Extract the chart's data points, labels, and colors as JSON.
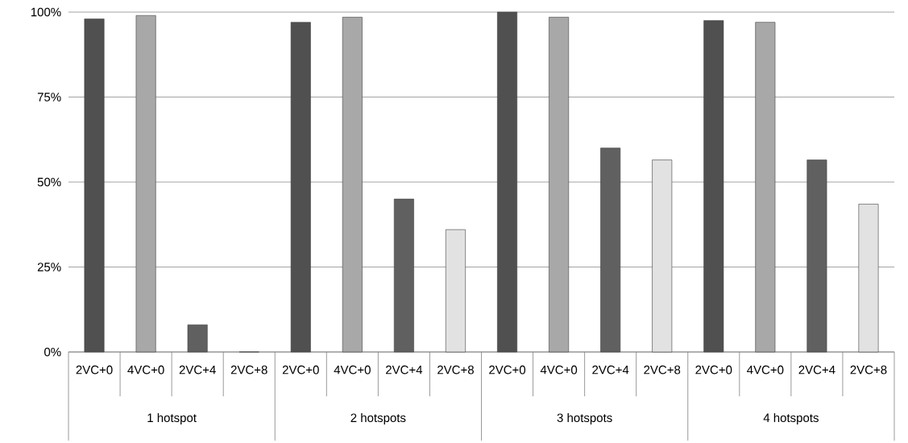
{
  "chart_data": {
    "type": "bar",
    "categories": [
      "2VC+0",
      "4VC+0",
      "2VC+4",
      "2VC+8",
      "2VC+0",
      "4VC+0",
      "2VC+4",
      "2VC+8",
      "2VC+0",
      "4VC+0",
      "2VC+4",
      "2VC+8",
      "2VC+0",
      "4VC+0",
      "2VC+4",
      "2VC+8"
    ],
    "values": [
      98,
      99,
      8,
      0,
      97,
      98.5,
      45,
      36,
      100,
      98.5,
      60,
      56.5,
      97.5,
      97,
      56.5,
      43.5
    ],
    "colors": [
      "#505050",
      "#a8a8a8",
      "#606060",
      "#e2e2e2",
      "#505050",
      "#a8a8a8",
      "#606060",
      "#e2e2e2",
      "#505050",
      "#a8a8a8",
      "#606060",
      "#e2e2e2",
      "#505050",
      "#a8a8a8",
      "#606060",
      "#e2e2e2"
    ],
    "annotations": [
      "1 hotspot",
      "2 hotspots",
      "3 hotspots",
      "4 hotspots"
    ],
    "ylim": [
      0,
      100
    ],
    "yticks": [
      {
        "value": 0,
        "label": "0%"
      },
      {
        "value": 25,
        "label": "25%"
      },
      {
        "value": 50,
        "label": "50%"
      },
      {
        "value": 75,
        "label": "75%"
      },
      {
        "value": 100,
        "label": "100%"
      }
    ],
    "grid": "y"
  }
}
